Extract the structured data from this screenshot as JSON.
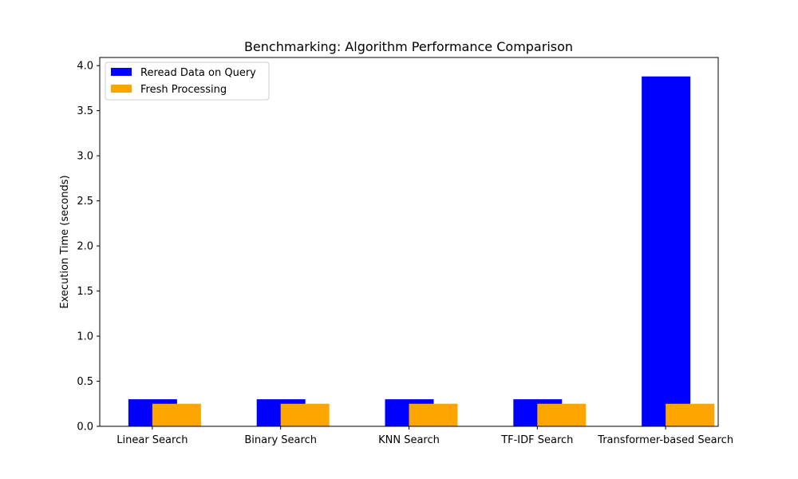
{
  "chart_data": {
    "type": "bar",
    "title": "Benchmarking: Algorithm Performance Comparison",
    "xlabel": "",
    "ylabel": "Execution Time (seconds)",
    "categories": [
      "Linear Search",
      "Binary Search",
      "KNN Search",
      "TF-IDF Search",
      "Transformer-based Search"
    ],
    "series": [
      {
        "name": "Reread Data on Query",
        "color": "#0000ff",
        "values": [
          0.3,
          0.3,
          0.3,
          0.3,
          3.88
        ]
      },
      {
        "name": "Fresh Processing",
        "color": "#ffa500",
        "values": [
          0.25,
          0.25,
          0.25,
          0.25,
          0.25
        ]
      }
    ],
    "ylim": [
      0,
      4.09
    ],
    "yticks": [
      "0.0",
      "0.5",
      "1.0",
      "1.5",
      "2.0",
      "2.5",
      "3.0",
      "3.5",
      "4.0"
    ],
    "grid": false,
    "legend": "top-left"
  }
}
